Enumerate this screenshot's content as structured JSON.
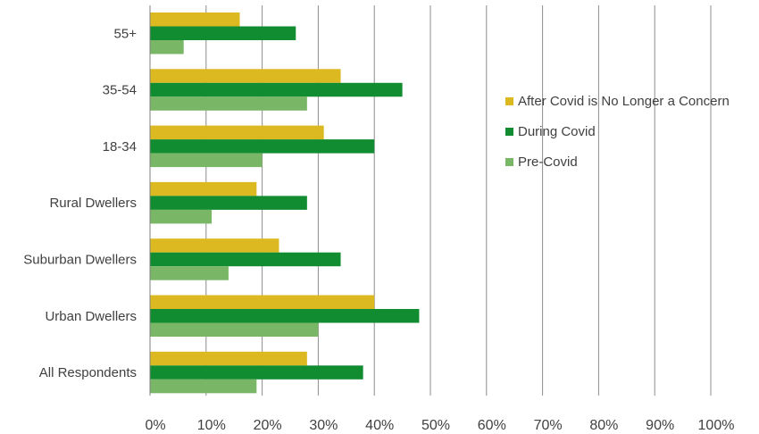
{
  "chart_data": {
    "type": "bar",
    "orientation": "horizontal",
    "categories": [
      "55+",
      "35-54",
      "18-34",
      "Rural Dwellers",
      "Suburban Dwellers",
      "Urban Dwellers",
      "All Respondents"
    ],
    "series": [
      {
        "name": "After Covid is No Longer a Concern",
        "color": "#DDB921",
        "values": [
          16,
          34,
          31,
          19,
          23,
          40,
          28
        ]
      },
      {
        "name": "During Covid",
        "color": "#118C30",
        "values": [
          26,
          45,
          40,
          28,
          34,
          48,
          38
        ]
      },
      {
        "name": "Pre-Covid",
        "color": "#79B766",
        "values": [
          6,
          28,
          20,
          11,
          14,
          30,
          19
        ]
      }
    ],
    "xlim": [
      0,
      100
    ],
    "x_ticks": [
      "0%",
      "10%",
      "20%",
      "30%",
      "40%",
      "50%",
      "60%",
      "70%",
      "80%",
      "90%",
      "100%"
    ],
    "grid": "vertical",
    "legend_position": "right"
  }
}
